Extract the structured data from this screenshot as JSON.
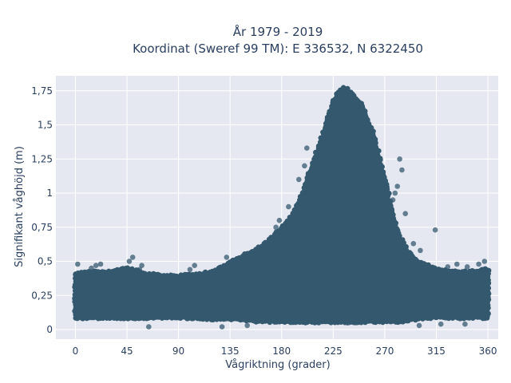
{
  "chart_data": {
    "type": "scatter",
    "title_line1": "År 1979 - 2019",
    "title_line2": "Koordinat (Sweref 99 TM): E 336532, N 6322450",
    "xlabel": "Vågriktning (grader)",
    "ylabel": "Signifikant våghöjd (m)",
    "xlim": [
      -17,
      369
    ],
    "ylim": [
      -0.07,
      1.86
    ],
    "x_ticks": [
      0,
      45,
      90,
      135,
      180,
      225,
      270,
      315,
      360
    ],
    "x_tick_labels": [
      "0",
      "45",
      "90",
      "135",
      "180",
      "225",
      "270",
      "315",
      "360"
    ],
    "y_ticks": [
      0,
      0.25,
      0.5,
      0.75,
      1,
      1.25,
      1.5,
      1.75
    ],
    "y_tick_labels": [
      "0",
      "0,25",
      "0,5",
      "0,75",
      "1",
      "1,25",
      "1,5",
      "1,75"
    ],
    "grid": true,
    "marker_color": "#34596f",
    "plot_bgcolor": "#e5e8f0",
    "envelope": {
      "direction_deg": [
        0,
        15,
        30,
        45,
        60,
        75,
        90,
        105,
        120,
        135,
        150,
        165,
        180,
        190,
        200,
        210,
        220,
        225,
        230,
        235,
        240,
        250,
        260,
        270,
        280,
        290,
        300,
        315,
        330,
        345,
        360
      ],
      "upper_hs_m": [
        0.42,
        0.43,
        0.43,
        0.46,
        0.42,
        0.4,
        0.4,
        0.41,
        0.43,
        0.5,
        0.56,
        0.63,
        0.75,
        0.85,
        1.05,
        1.3,
        1.55,
        1.68,
        1.76,
        1.78,
        1.75,
        1.65,
        1.45,
        1.12,
        0.75,
        0.58,
        0.5,
        0.45,
        0.43,
        0.43,
        0.45
      ],
      "lower_hs_m": [
        0.08,
        0.08,
        0.08,
        0.08,
        0.08,
        0.08,
        0.08,
        0.08,
        0.07,
        0.07,
        0.06,
        0.05,
        0.05,
        0.05,
        0.05,
        0.05,
        0.05,
        0.05,
        0.05,
        0.05,
        0.05,
        0.05,
        0.05,
        0.05,
        0.05,
        0.06,
        0.07,
        0.08,
        0.08,
        0.08,
        0.08
      ]
    },
    "scattered_points": [
      {
        "x": 2,
        "y": 0.48
      },
      {
        "x": 14,
        "y": 0.45
      },
      {
        "x": 18,
        "y": 0.47
      },
      {
        "x": 22,
        "y": 0.48
      },
      {
        "x": 47,
        "y": 0.5
      },
      {
        "x": 50,
        "y": 0.53
      },
      {
        "x": 58,
        "y": 0.47
      },
      {
        "x": 56,
        "y": 0.44
      },
      {
        "x": 100,
        "y": 0.44
      },
      {
        "x": 104,
        "y": 0.47
      },
      {
        "x": 132,
        "y": 0.53
      },
      {
        "x": 148,
        "y": 0.55
      },
      {
        "x": 175,
        "y": 0.75
      },
      {
        "x": 178,
        "y": 0.8
      },
      {
        "x": 186,
        "y": 0.9
      },
      {
        "x": 195,
        "y": 1.1
      },
      {
        "x": 200,
        "y": 1.2
      },
      {
        "x": 202,
        "y": 1.33
      },
      {
        "x": 277,
        "y": 0.95
      },
      {
        "x": 279,
        "y": 1.0
      },
      {
        "x": 281,
        "y": 1.05
      },
      {
        "x": 283,
        "y": 1.25
      },
      {
        "x": 285,
        "y": 1.17
      },
      {
        "x": 288,
        "y": 0.85
      },
      {
        "x": 295,
        "y": 0.63
      },
      {
        "x": 301,
        "y": 0.58
      },
      {
        "x": 314,
        "y": 0.73
      },
      {
        "x": 325,
        "y": 0.46
      },
      {
        "x": 333,
        "y": 0.48
      },
      {
        "x": 342,
        "y": 0.46
      },
      {
        "x": 352,
        "y": 0.48
      },
      {
        "x": 357,
        "y": 0.5
      },
      {
        "x": 64,
        "y": 0.02
      },
      {
        "x": 128,
        "y": 0.02
      },
      {
        "x": 150,
        "y": 0.03
      },
      {
        "x": 300,
        "y": 0.03
      },
      {
        "x": 319,
        "y": 0.04
      },
      {
        "x": 340,
        "y": 0.04
      }
    ]
  }
}
